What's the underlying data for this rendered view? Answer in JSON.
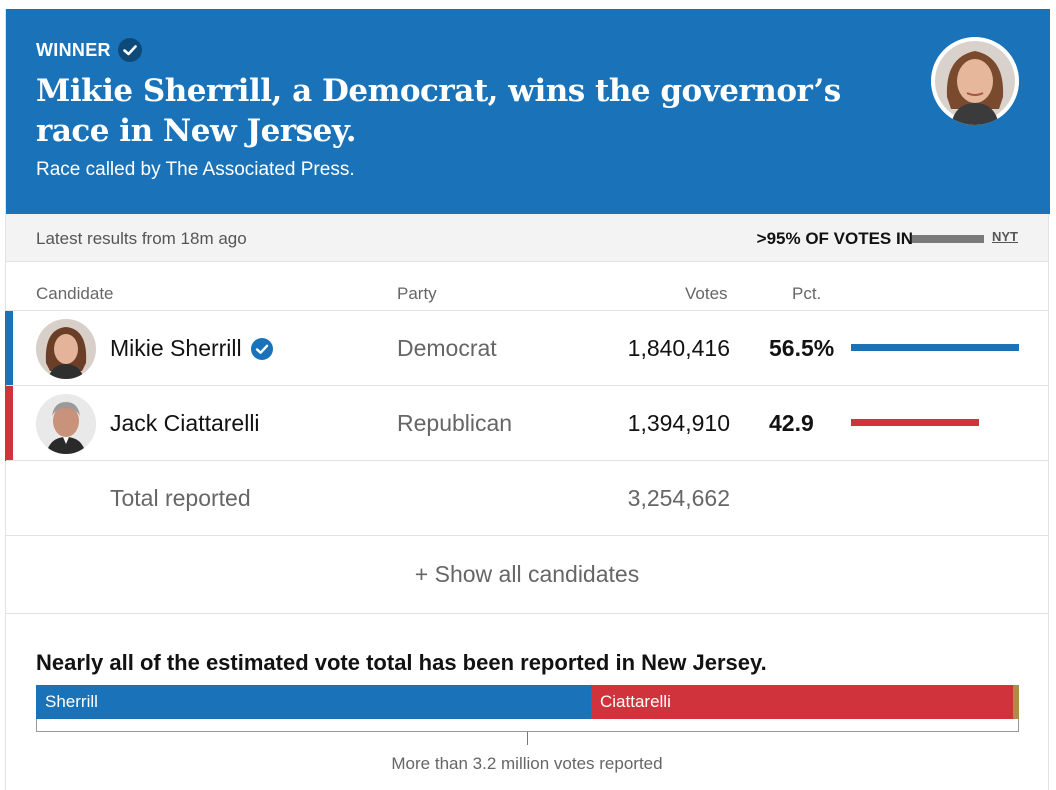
{
  "banner": {
    "winner_label": "WINNER",
    "headline": "Mikie Sherrill, a Democrat, wins the governor’s race in New Jersey.",
    "race_called": "Race called by The Associated Press.",
    "background_color": "#1a73b8",
    "verified_icon": "check-badge-icon"
  },
  "status": {
    "latest": "Latest results from 18m ago",
    "votes_in": ">95% OF VOTES IN",
    "votes_in_fraction": 0.95,
    "source_link": "NYT"
  },
  "table": {
    "columns": {
      "candidate": "Candidate",
      "party": "Party",
      "votes": "Votes",
      "pct": "Pct."
    },
    "rows": [
      {
        "name": "Mikie Sherrill",
        "party": "Democrat",
        "votes": "1,840,416",
        "pct": "56.5%",
        "pct_value": 56.5,
        "winner": true,
        "color": "#1a73b8"
      },
      {
        "name": "Jack Ciattarelli",
        "party": "Republican",
        "votes": "1,394,910",
        "pct": "42.9",
        "pct_value": 42.9,
        "winner": false,
        "color": "#d0333b"
      }
    ],
    "total_label": "Total reported",
    "total_votes": "3,254,662",
    "show_all": "+ Show all candidates"
  },
  "estimate": {
    "title": "Nearly all of the estimated vote total has been reported in New Jersey.",
    "segments": [
      {
        "label": "Sherrill",
        "fraction": 0.565,
        "color": "#1a73b8"
      },
      {
        "label": "Ciattarelli",
        "fraction": 0.429,
        "color": "#d0333b"
      },
      {
        "label": "",
        "fraction": 0.006,
        "color": "#b08a4a"
      }
    ],
    "caption": "More than 3.2 million votes reported"
  }
}
